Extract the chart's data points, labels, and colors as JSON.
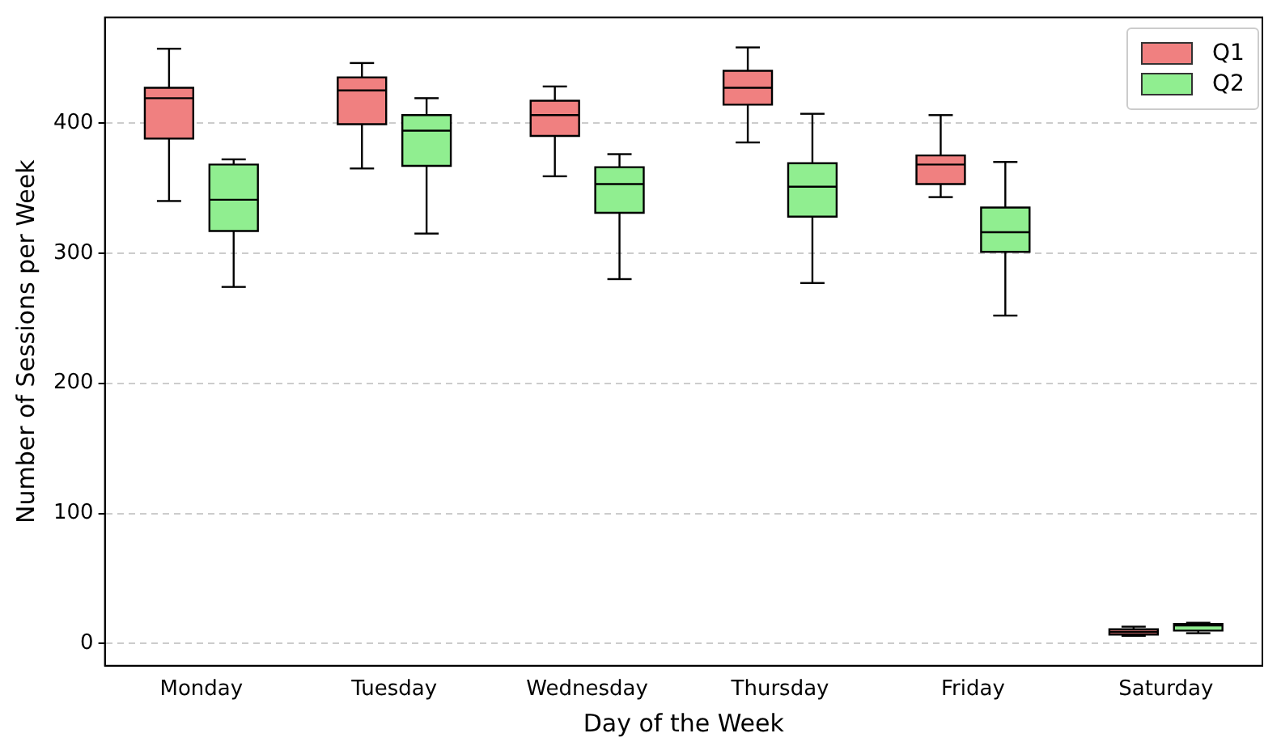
{
  "chart_data": {
    "type": "box",
    "xlabel": "Day of the Week",
    "ylabel": "Number of Sessions per Week",
    "categories": [
      "Monday",
      "Tuesday",
      "Wednesday",
      "Thursday",
      "Friday",
      "Saturday"
    ],
    "series": [
      {
        "name": "Q1",
        "color": "#f08080",
        "boxes": [
          {
            "low": 340,
            "q1": 388,
            "median": 419,
            "q3": 427,
            "high": 457
          },
          {
            "low": 365,
            "q1": 399,
            "median": 425,
            "q3": 435,
            "high": 446
          },
          {
            "low": 359,
            "q1": 390,
            "median": 406,
            "q3": 417,
            "high": 428
          },
          {
            "low": 385,
            "q1": 414,
            "median": 427,
            "q3": 440,
            "high": 458
          },
          {
            "low": 343,
            "q1": 353,
            "median": 368,
            "q3": 375,
            "high": 406
          },
          {
            "low": 6,
            "q1": 7,
            "median": 9,
            "q3": 11,
            "high": 13
          }
        ]
      },
      {
        "name": "Q2",
        "color": "#90ee90",
        "boxes": [
          {
            "low": 274,
            "q1": 317,
            "median": 341,
            "q3": 368,
            "high": 372
          },
          {
            "low": 315,
            "q1": 367,
            "median": 394,
            "q3": 406,
            "high": 419
          },
          {
            "low": 280,
            "q1": 331,
            "median": 353,
            "q3": 366,
            "high": 376
          },
          {
            "low": 277,
            "q1": 328,
            "median": 351,
            "q3": 369,
            "high": 407
          },
          {
            "low": 252,
            "q1": 301,
            "median": 316,
            "q3": 335,
            "high": 370
          },
          {
            "low": 8,
            "q1": 10,
            "median": 14,
            "q3": 15,
            "high": 16
          }
        ]
      }
    ],
    "ylim": [
      -17,
      481
    ],
    "yticks": [
      0,
      100,
      200,
      300,
      400
    ],
    "grid": "y",
    "legend": "top right"
  }
}
